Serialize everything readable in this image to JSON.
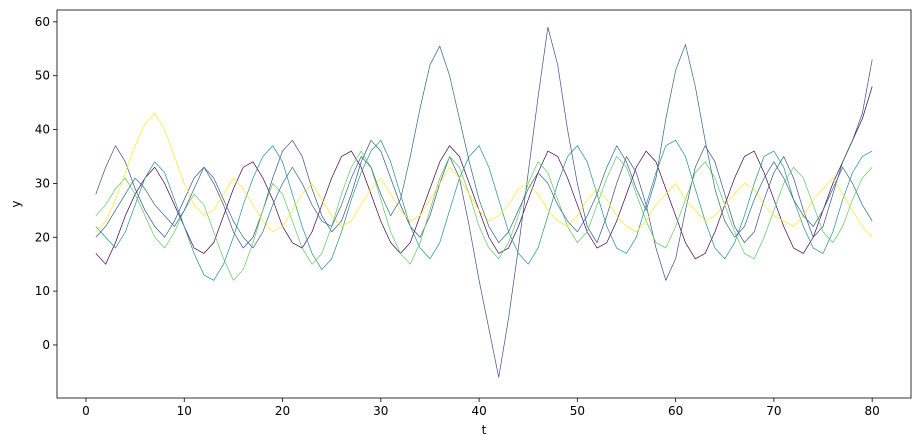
{
  "chart_data": {
    "type": "line",
    "xlabel": "t",
    "ylabel": "y",
    "x": [
      1,
      2,
      3,
      4,
      5,
      6,
      7,
      8,
      9,
      10,
      11,
      12,
      13,
      14,
      15,
      16,
      17,
      18,
      19,
      20,
      21,
      22,
      23,
      24,
      25,
      26,
      27,
      28,
      29,
      30,
      31,
      32,
      33,
      34,
      35,
      36,
      37,
      38,
      39,
      40,
      41,
      42,
      43,
      44,
      45,
      46,
      47,
      48,
      49,
      50,
      51,
      52,
      53,
      54,
      55,
      56,
      57,
      58,
      59,
      60,
      61,
      62,
      63,
      64,
      65,
      66,
      67,
      68,
      69,
      70,
      71,
      72,
      73,
      74,
      75,
      76,
      77,
      78,
      79,
      80
    ],
    "series": [
      {
        "color": "#440154",
        "values": [
          17,
          15,
          19,
          24,
          28,
          31,
          33,
          30,
          26,
          22,
          18,
          17,
          19,
          24,
          29,
          33,
          34,
          31,
          27,
          22,
          19,
          18,
          21,
          26,
          31,
          35,
          36,
          33,
          28,
          23,
          19,
          17,
          19,
          24,
          29,
          34,
          37,
          35,
          30,
          25,
          20,
          17,
          18,
          22,
          27,
          32,
          36,
          35,
          31,
          26,
          21,
          18,
          19,
          23,
          28,
          33,
          36,
          34,
          29,
          24,
          19,
          16,
          17,
          21,
          26,
          31,
          35,
          36,
          32,
          27,
          22,
          18,
          17,
          20,
          25,
          30,
          34,
          38,
          42,
          48
        ]
      },
      {
        "color": "#3b528b",
        "values": [
          28,
          33,
          37,
          34,
          29,
          25,
          22,
          20,
          23,
          27,
          31,
          33,
          30,
          26,
          21,
          18,
          20,
          25,
          31,
          36,
          38,
          35,
          29,
          24,
          21,
          23,
          28,
          34,
          38,
          36,
          31,
          26,
          22,
          20,
          24,
          30,
          35,
          31,
          22,
          12,
          3,
          -6,
          5,
          18,
          32,
          46,
          59,
          52,
          40,
          30,
          22,
          19,
          24,
          30,
          35,
          32,
          26,
          18,
          12,
          16,
          25,
          33,
          37,
          34,
          28,
          22,
          19,
          21,
          27,
          32,
          35,
          31,
          25,
          20,
          22,
          28,
          34,
          38,
          43,
          53
        ]
      },
      {
        "color": "#21918c",
        "values": [
          22,
          20,
          18,
          21,
          26,
          31,
          34,
          32,
          27,
          22,
          17,
          13,
          12,
          15,
          20,
          26,
          31,
          35,
          37,
          34,
          28,
          22,
          17,
          14,
          16,
          21,
          27,
          32,
          36,
          38,
          34,
          28,
          22,
          18,
          16,
          19,
          25,
          31,
          35,
          37,
          33,
          27,
          21,
          17,
          15,
          18,
          24,
          30,
          35,
          37,
          34,
          28,
          22,
          18,
          17,
          20,
          26,
          32,
          37,
          38,
          35,
          29,
          23,
          18,
          16,
          19,
          24,
          30,
          35,
          36,
          33,
          27,
          22,
          18,
          17,
          21,
          27,
          32,
          35,
          36
        ]
      },
      {
        "color": "#5ec962",
        "values": [
          24,
          26,
          29,
          31,
          28,
          24,
          20,
          18,
          21,
          25,
          28,
          26,
          21,
          16,
          12,
          14,
          19,
          25,
          30,
          28,
          23,
          18,
          15,
          17,
          22,
          28,
          33,
          36,
          33,
          27,
          21,
          17,
          15,
          19,
          25,
          31,
          35,
          33,
          28,
          22,
          18,
          16,
          19,
          24,
          30,
          34,
          32,
          27,
          22,
          19,
          21,
          26,
          31,
          35,
          33,
          28,
          23,
          19,
          18,
          22,
          27,
          32,
          34,
          31,
          26,
          21,
          17,
          16,
          20,
          25,
          30,
          33,
          31,
          26,
          21,
          19,
          22,
          27,
          31,
          33
        ]
      },
      {
        "color": "#fde725",
        "values": [
          21,
          23,
          27,
          32,
          37,
          41,
          43,
          40,
          35,
          30,
          26,
          24,
          25,
          28,
          31,
          29,
          26,
          23,
          21,
          22,
          25,
          28,
          30,
          27,
          24,
          22,
          23,
          26,
          29,
          31,
          28,
          25,
          23,
          24,
          27,
          30,
          33,
          31,
          28,
          25,
          23,
          24,
          26,
          29,
          30,
          28,
          25,
          23,
          22,
          24,
          27,
          29,
          27,
          24,
          22,
          21,
          23,
          26,
          28,
          30,
          27,
          25,
          23,
          24,
          26,
          28,
          30,
          29,
          26,
          24,
          23,
          22,
          24,
          27,
          29,
          31,
          28,
          25,
          22,
          20
        ]
      },
      {
        "color": "#31688e",
        "values": [
          20,
          22,
          25,
          28,
          31,
          29,
          26,
          24,
          22,
          25,
          29,
          33,
          31,
          27,
          23,
          20,
          18,
          21,
          26,
          30,
          33,
          30,
          26,
          23,
          22,
          26,
          31,
          35,
          33,
          28,
          24,
          27,
          35,
          44,
          52,
          55.5,
          50,
          42,
          34,
          27,
          22,
          19,
          21,
          25,
          29,
          32,
          30,
          26,
          23,
          21,
          24,
          28,
          33,
          37,
          34,
          29,
          25,
          31,
          42,
          51,
          55.8,
          48,
          38,
          29,
          23,
          20,
          22,
          27,
          31,
          34,
          31,
          27,
          24,
          22,
          25,
          29,
          33,
          30,
          26,
          23
        ]
      }
    ],
    "xlim": [
      -2.95,
      83.95
    ],
    "xticks": [
      0,
      10,
      20,
      30,
      40,
      50,
      60,
      70,
      80
    ],
    "ylim": [
      -9.85,
      62.2
    ],
    "yticks": [
      0,
      10,
      20,
      30,
      40,
      50,
      60
    ],
    "grid": false
  }
}
